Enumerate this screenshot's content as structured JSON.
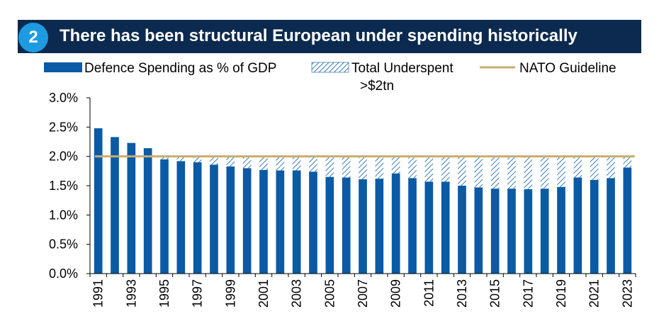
{
  "header": {
    "badge_number": "2",
    "title": "There has been structural European under spending historically"
  },
  "colors": {
    "banner": "#0c2a4f",
    "badge": "#1e9be0",
    "bar": "#0a5aa5",
    "nato_line": "#c9ad6f",
    "hatch": "#0a5aa5"
  },
  "annotation": ">$2tn",
  "chart_data": {
    "type": "bar",
    "title": "",
    "xlabel": "",
    "ylabel": "",
    "ylim": [
      0,
      3.0
    ],
    "yticks": [
      "0.0%",
      "0.5%",
      "1.0%",
      "1.5%",
      "2.0%",
      "2.5%",
      "3.0%"
    ],
    "ytick_values": [
      0,
      0.5,
      1.0,
      1.5,
      2.0,
      2.5,
      3.0
    ],
    "grid": false,
    "legend_position": "top",
    "categories": [
      "1991",
      "1992",
      "1993",
      "1994",
      "1995",
      "1996",
      "1997",
      "1998",
      "1999",
      "2000",
      "2001",
      "2002",
      "2003",
      "2004",
      "2005",
      "2006",
      "2007",
      "2008",
      "2009",
      "2010",
      "2011",
      "2012",
      "2013",
      "2014",
      "2015",
      "2016",
      "2017",
      "2018",
      "2019",
      "2020",
      "2021",
      "2022",
      "2023"
    ],
    "x_tick_labels": [
      "1991",
      "1993",
      "1995",
      "1997",
      "1999",
      "2001",
      "2003",
      "2005",
      "2007",
      "2009",
      "2011",
      "2013",
      "2015",
      "2017",
      "2019",
      "2021",
      "2023"
    ],
    "series": [
      {
        "name": "Defence Spending as % of GDP",
        "values": [
          2.48,
          2.33,
          2.23,
          2.14,
          1.95,
          1.92,
          1.9,
          1.86,
          1.83,
          1.8,
          1.77,
          1.76,
          1.76,
          1.74,
          1.65,
          1.64,
          1.61,
          1.62,
          1.71,
          1.63,
          1.57,
          1.57,
          1.5,
          1.47,
          1.45,
          1.45,
          1.44,
          1.45,
          1.48,
          1.64,
          1.6,
          1.63,
          1.81
        ]
      },
      {
        "name": "Total Underspent",
        "values": [
          0,
          0,
          0,
          0,
          0.05,
          0.08,
          0.1,
          0.14,
          0.17,
          0.2,
          0.23,
          0.24,
          0.24,
          0.26,
          0.35,
          0.36,
          0.39,
          0.38,
          0.29,
          0.37,
          0.43,
          0.43,
          0.5,
          0.53,
          0.55,
          0.55,
          0.56,
          0.55,
          0.52,
          0.36,
          0.4,
          0.37,
          0.19
        ]
      },
      {
        "name": "NATO Guideline",
        "type": "line",
        "value": 2.0
      }
    ]
  }
}
